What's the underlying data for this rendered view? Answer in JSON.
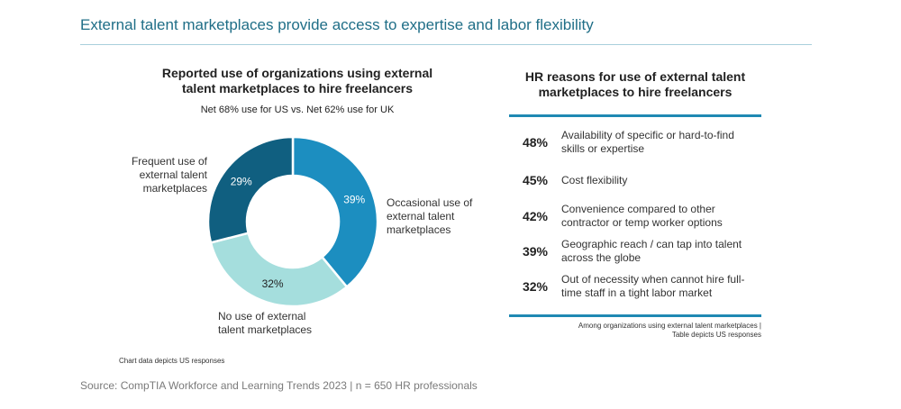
{
  "header": {
    "title": "External talent marketplaces provide access to expertise and labor flexibility"
  },
  "left_panel": {
    "title_line1": "Reported use of organizations using external",
    "title_line2": "talent marketplaces to hire freelancers",
    "subtitle": "Net 68% use for US vs. Net 62% use for UK",
    "callouts": {
      "frequent": [
        "Frequent use of",
        "external talent",
        "marketplaces"
      ],
      "occasional": [
        "Occasional use of",
        "external talent",
        "marketplaces"
      ],
      "none": [
        "No use of external",
        "talent marketplaces"
      ]
    },
    "note": "Chart data depicts US responses"
  },
  "chart_data": {
    "type": "pie",
    "donut": true,
    "title": "Reported use of organizations using external talent marketplaces to hire freelancers",
    "subtitle": "Net 68% use for US vs. Net 62% use for UK",
    "slices": [
      {
        "label": "Occasional use of external talent marketplaces",
        "value": 39,
        "value_label": "39%",
        "color": "#1c8ec0",
        "text_color": "#ffffff"
      },
      {
        "label": "No use of external talent marketplaces",
        "value": 32,
        "value_label": "32%",
        "color": "#a5dedd",
        "text_color": "#222222"
      },
      {
        "label": "Frequent use of external talent marketplaces",
        "value": 29,
        "value_label": "29%",
        "color": "#105f80",
        "text_color": "#ffffff"
      }
    ],
    "start": "top, clockwise",
    "legend": "callout labels"
  },
  "right_panel": {
    "title_line1": "HR reasons for use of external talent",
    "title_line2": "marketplaces to hire freelancers",
    "rows": [
      {
        "pct": "48%",
        "line1": "Availability of specific or hard-to-find",
        "line2": "skills or expertise"
      },
      {
        "pct": "45%",
        "line1": "Cost flexibility",
        "line2": ""
      },
      {
        "pct": "42%",
        "line1": "Convenience compared to other",
        "line2": "contractor or temp worker options"
      },
      {
        "pct": "39%",
        "line1": "Geographic reach / can tap into talent",
        "line2": "across the globe"
      },
      {
        "pct": "32%",
        "line1": "Out of necessity when cannot hire full-",
        "line2": "time staff in a tight labor market"
      }
    ],
    "note_line1": "Among organizations using external talent marketplaces |",
    "note_line2": "Table depicts US  responses"
  },
  "footer": {
    "source": "Source: CompTIA Workforce and Learning Trends 2023 | n = 650 HR professionals"
  }
}
